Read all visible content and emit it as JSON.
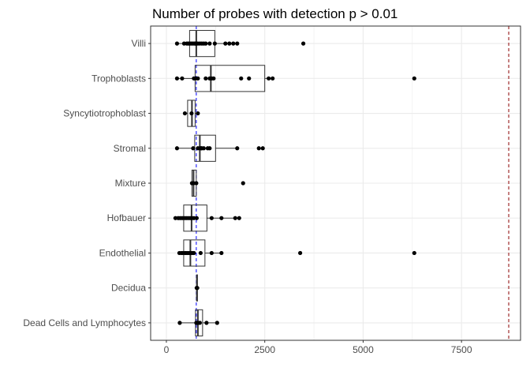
{
  "chart_data": {
    "type": "boxplot",
    "title": "Number of probes with detection p > 0.01",
    "xlabel": "",
    "ylabel": "",
    "xlim": [
      -400,
      9000
    ],
    "x_ticks": [
      0,
      2500,
      5000,
      7500
    ],
    "x_tick_labels": [
      "0",
      "2500",
      "5000",
      "7500"
    ],
    "grid": true,
    "orientation": "horizontal",
    "categories": [
      "Villi",
      "Trophoblasts",
      "Syncytiotrophoblast",
      "Stromal",
      "Mixture",
      "Hofbauer",
      "Endothelial",
      "Decidua",
      "Dead Cells and Lymphocytes"
    ],
    "boxes": [
      {
        "category": "Villi",
        "min": 270,
        "q1": 590,
        "median": 760,
        "q3": 1230,
        "max": 1820,
        "points": [
          270,
          450,
          520,
          560,
          600,
          640,
          680,
          720,
          740,
          760,
          800,
          850,
          900,
          950,
          1000,
          1100,
          1230,
          1500,
          1600,
          1700,
          1800,
          3480
        ]
      },
      {
        "category": "Trophoblasts",
        "min": 270,
        "q1": 730,
        "median": 1130,
        "q3": 2500,
        "max": 2710,
        "points": [
          270,
          400,
          700,
          750,
          800,
          1000,
          1100,
          1150,
          1200,
          1900,
          2100,
          2600,
          2700,
          6300
        ]
      },
      {
        "category": "Syncytiotrophoblast",
        "min": 470,
        "q1": 540,
        "median": 650,
        "q3": 730,
        "max": 790,
        "points": [
          470,
          640,
          800
        ]
      },
      {
        "category": "Stromal",
        "min": 270,
        "q1": 720,
        "median": 850,
        "q3": 1250,
        "max": 1800,
        "points": [
          270,
          680,
          800,
          850,
          880,
          900,
          950,
          1050,
          1100,
          1800,
          2350,
          2450
        ]
      },
      {
        "category": "Mixture",
        "min": 640,
        "q1": 650,
        "median": 690,
        "q3": 760,
        "max": 780,
        "points": [
          650,
          690,
          760,
          1950
        ]
      },
      {
        "category": "Hofbauer",
        "min": 230,
        "q1": 440,
        "median": 640,
        "q3": 1030,
        "max": 1860,
        "points": [
          230,
          300,
          350,
          400,
          450,
          500,
          550,
          600,
          650,
          700,
          770,
          1150,
          1400,
          1750,
          1850
        ]
      },
      {
        "category": "Endothelial",
        "min": 330,
        "q1": 440,
        "median": 610,
        "q3": 980,
        "max": 1400,
        "points": [
          330,
          380,
          420,
          470,
          500,
          540,
          580,
          620,
          660,
          700,
          870,
          1150,
          1400,
          3400,
          6300
        ]
      },
      {
        "category": "Decidua",
        "min": 765,
        "q1": 770,
        "median": 775,
        "q3": 785,
        "max": 790,
        "points": [
          770,
          785
        ]
      },
      {
        "category": "Dead Cells and Lymphocytes",
        "min": 340,
        "q1": 740,
        "median": 800,
        "q3": 920,
        "max": 1290,
        "points": [
          340,
          760,
          800,
          850,
          1020,
          1290
        ]
      }
    ],
    "reference_lines": [
      {
        "x": 760,
        "color": "#0000ff",
        "style": "dashed"
      },
      {
        "x": 8700,
        "color": "#8b0000",
        "style": "dashed"
      }
    ],
    "colors": {
      "points": "#000000",
      "box_stroke": "#333333",
      "grid": "#ebebeb",
      "panel_border": "#333333"
    }
  }
}
